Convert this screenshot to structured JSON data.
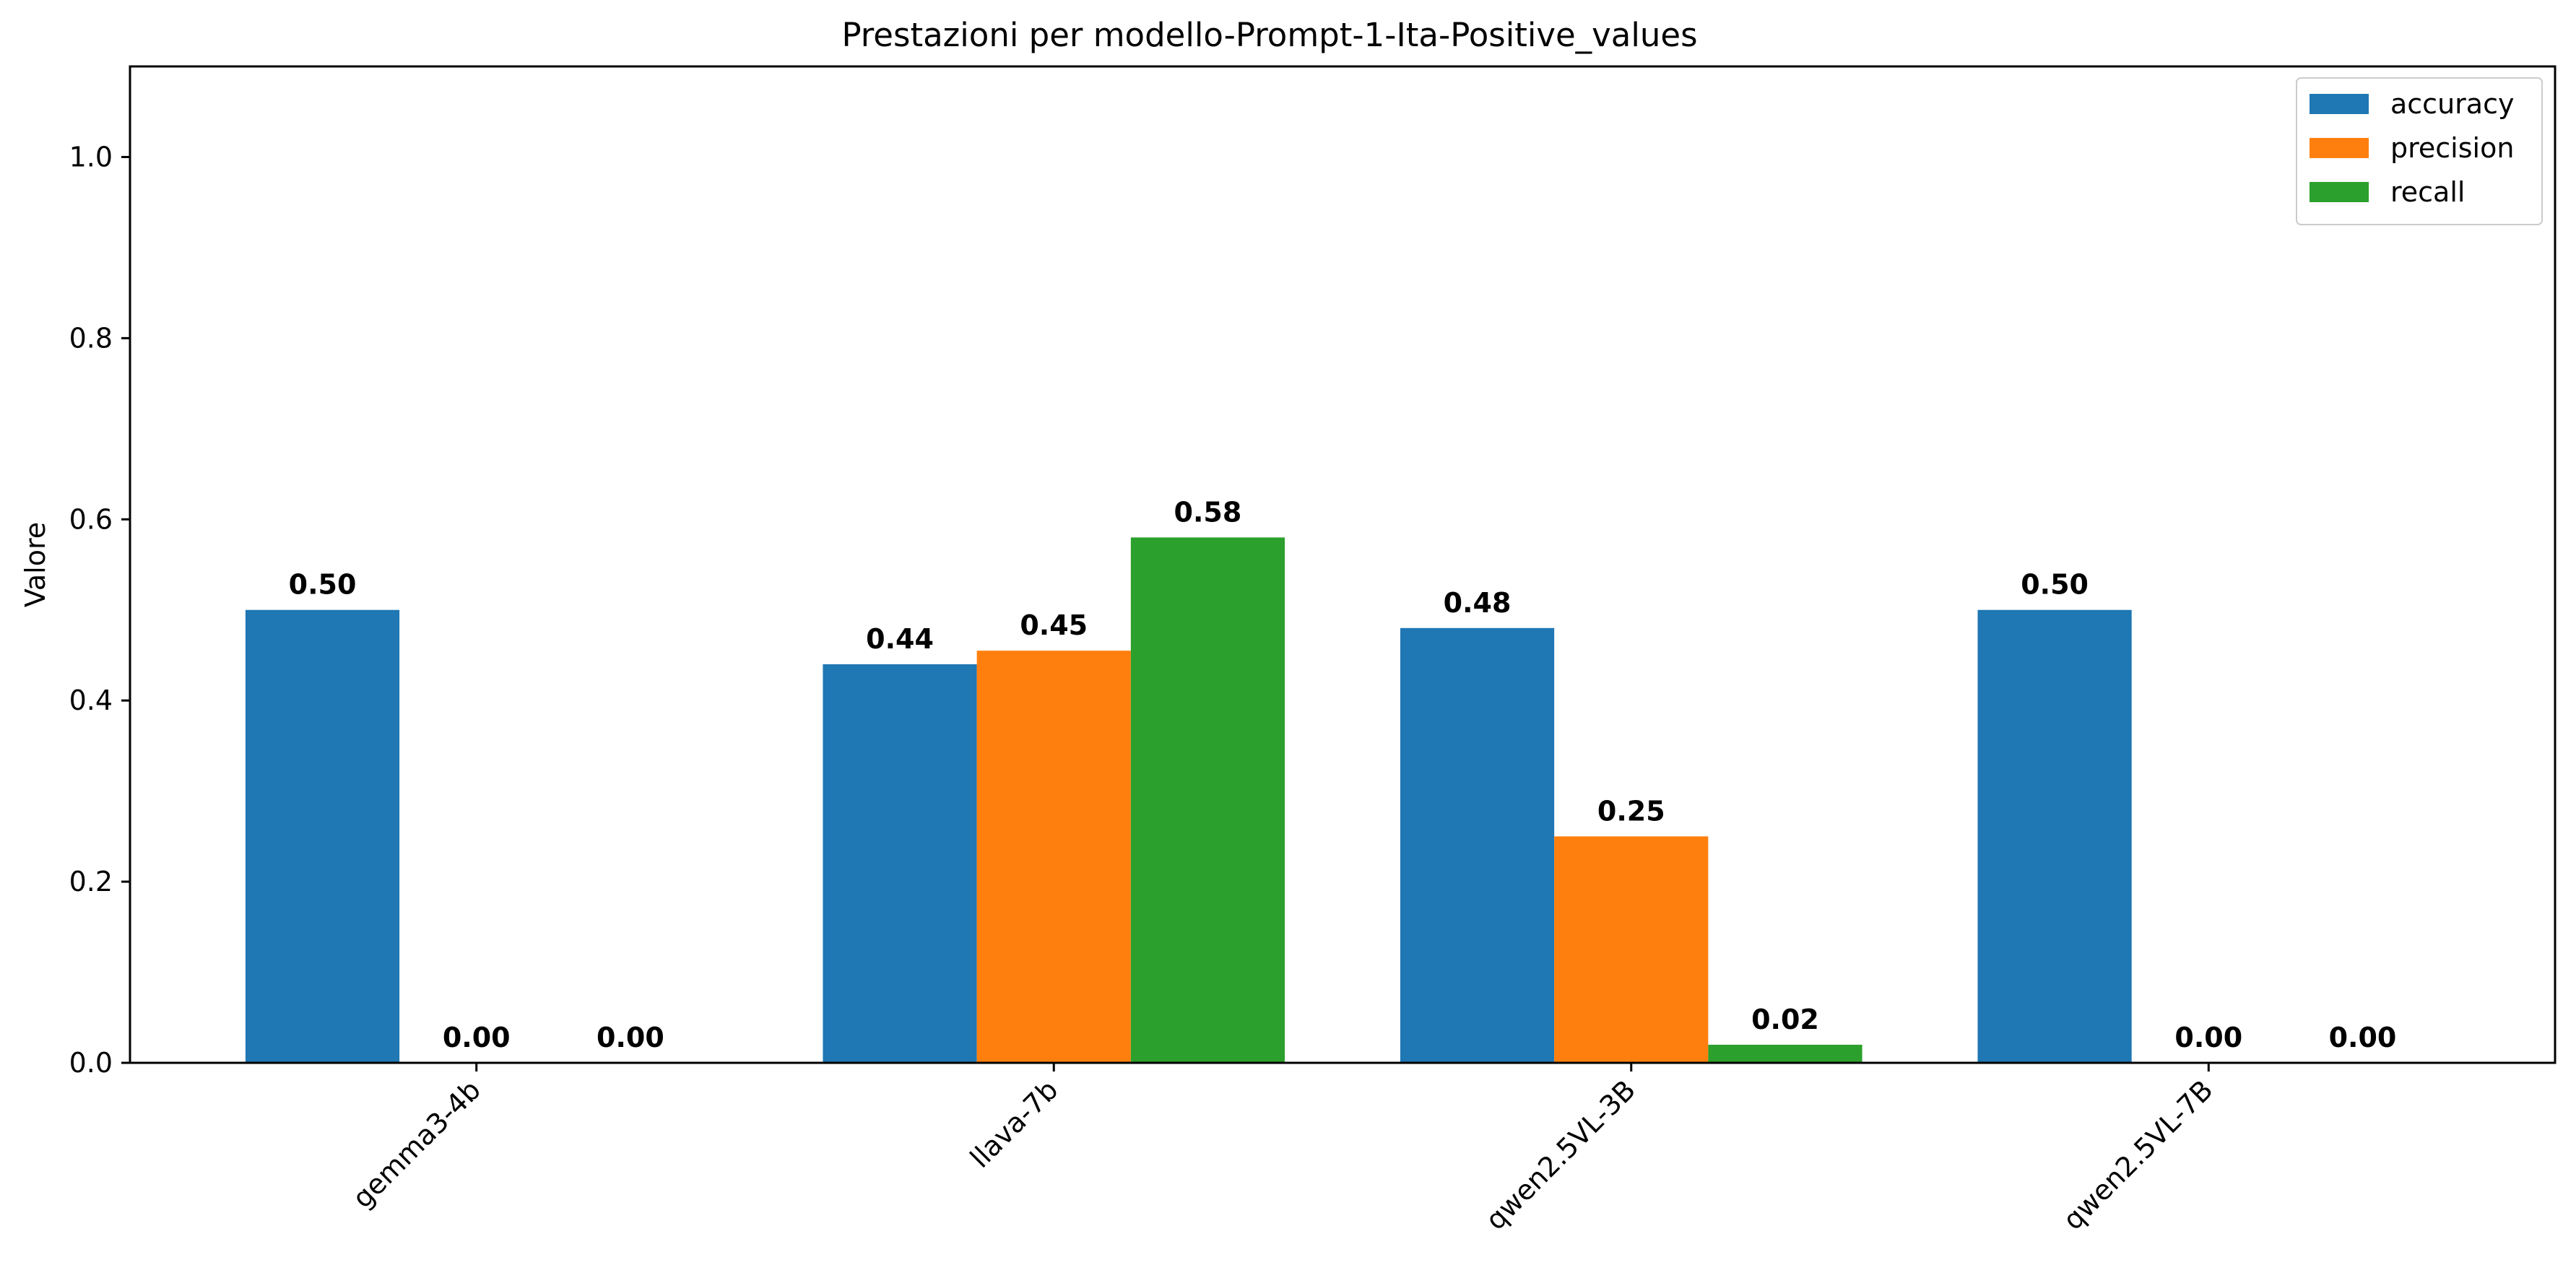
{
  "chart_data": {
    "type": "bar",
    "title": "Prestazioni per modello-Prompt-1-Ita-Positive_values",
    "xlabel": "",
    "ylabel": "Valore",
    "ylim": [
      0,
      1.1
    ],
    "yticks": [
      0.0,
      0.2,
      0.4,
      0.6,
      0.8,
      1.0
    ],
    "ytick_labels": [
      "0.0",
      "0.2",
      "0.4",
      "0.6",
      "0.8",
      "1.0"
    ],
    "categories": [
      "gemma3-4b",
      "llava-7b",
      "qwen2.5VL-3B",
      "qwen2.5VL-7B"
    ],
    "series": [
      {
        "name": "accuracy",
        "color": "#1f77b4",
        "values": [
          0.5,
          0.44,
          0.48,
          0.5
        ],
        "labels": [
          "0.50",
          "0.44",
          "0.48",
          "0.50"
        ]
      },
      {
        "name": "precision",
        "color": "#ff7f0e",
        "values": [
          0.0,
          0.455,
          0.25,
          0.0
        ],
        "labels": [
          "0.00",
          "0.45",
          "0.25",
          "0.00"
        ]
      },
      {
        "name": "recall",
        "color": "#2ca02c",
        "values": [
          0.0,
          0.58,
          0.02,
          0.0
        ],
        "labels": [
          "0.00",
          "0.58",
          "0.02",
          "0.00"
        ]
      }
    ],
    "legend": "top-right",
    "grid": false
  }
}
